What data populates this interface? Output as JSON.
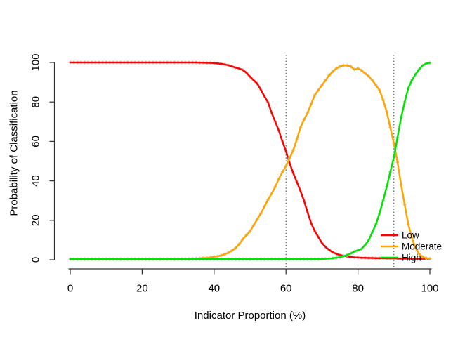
{
  "figure": {
    "background": "#ffffff"
  },
  "chart_data": {
    "type": "line",
    "title": "",
    "xlabel": "Indicator Proportion (%)",
    "ylabel": "Probability of Classification",
    "xlim": [
      0,
      100
    ],
    "ylim": [
      0,
      100
    ],
    "x_ticks": [
      0,
      20,
      40,
      60,
      80,
      100
    ],
    "y_ticks": [
      0,
      20,
      40,
      60,
      80,
      100
    ],
    "grid": false,
    "marker": {
      "shape": "open-diamond",
      "color": "#cccccc"
    },
    "reference_lines": {
      "vertical": [
        60,
        90
      ],
      "style": "dotted",
      "color": "#3c3c3c"
    },
    "legend": {
      "position": "bottom-right",
      "entries": [
        "Low",
        "Moderate",
        "High"
      ]
    },
    "axis_color": "#2e2e2e",
    "x": [
      0,
      1,
      2,
      3,
      4,
      5,
      6,
      7,
      8,
      9,
      10,
      11,
      12,
      13,
      14,
      15,
      16,
      17,
      18,
      19,
      20,
      21,
      22,
      23,
      24,
      25,
      26,
      27,
      28,
      29,
      30,
      31,
      32,
      33,
      34,
      35,
      36,
      37,
      38,
      39,
      40,
      41,
      42,
      43,
      44,
      45,
      46,
      47,
      48,
      49,
      50,
      51,
      52,
      53,
      54,
      55,
      56,
      57,
      58,
      59,
      60,
      61,
      62,
      63,
      64,
      65,
      66,
      67,
      68,
      69,
      70,
      71,
      72,
      73,
      74,
      75,
      76,
      77,
      78,
      79,
      80,
      81,
      82,
      83,
      84,
      85,
      86,
      87,
      88,
      89,
      90,
      91,
      92,
      93,
      94,
      95,
      96,
      97,
      98,
      99,
      100
    ],
    "series": [
      {
        "name": "Low",
        "color": "#ff0000",
        "values": [
          100,
          100,
          100,
          100,
          100,
          100,
          100,
          100,
          100,
          100,
          100,
          100,
          100,
          100,
          100,
          100,
          100,
          100,
          100,
          100,
          100,
          100,
          100,
          100,
          100,
          100,
          100,
          100,
          100,
          100,
          100,
          100,
          100,
          100,
          100,
          100,
          99.9,
          99.9,
          99.8,
          99.8,
          99.7,
          99.5,
          99.3,
          99,
          98.6,
          98,
          97.4,
          96.9,
          96.2,
          94.8,
          92.8,
          91,
          89.3,
          86.2,
          82.8,
          79.8,
          74.5,
          70,
          65.5,
          60,
          55,
          49,
          44,
          39.5,
          35,
          30,
          24,
          18.5,
          14.5,
          11.5,
          8.5,
          6.5,
          5,
          3.8,
          3,
          2.4,
          2,
          1.7,
          1.4,
          1.2,
          1.1,
          1,
          1,
          0.9,
          0.9,
          0.8,
          0.8,
          0.8,
          0.7,
          0.7,
          0.7,
          0.6,
          0.6,
          0.6,
          0.6,
          0.5,
          0.5,
          0.5,
          0.5,
          0.5,
          0.5
        ]
      },
      {
        "name": "Moderate",
        "color": "#ffa500",
        "values": [
          0.3,
          0.3,
          0.3,
          0.3,
          0.3,
          0.3,
          0.3,
          0.3,
          0.3,
          0.3,
          0.3,
          0.3,
          0.3,
          0.3,
          0.3,
          0.3,
          0.3,
          0.3,
          0.3,
          0.3,
          0.3,
          0.3,
          0.3,
          0.3,
          0.3,
          0.3,
          0.3,
          0.3,
          0.3,
          0.3,
          0.3,
          0.4,
          0.4,
          0.5,
          0.5,
          0.6,
          0.7,
          0.9,
          1,
          1.2,
          1.5,
          1.8,
          2.2,
          2.9,
          3.6,
          4.7,
          6,
          8,
          10.5,
          12.5,
          14.5,
          17.5,
          20.5,
          23.5,
          27,
          30.5,
          33.5,
          37,
          41,
          44.5,
          47.5,
          51.5,
          55.5,
          61,
          67,
          71,
          74.5,
          79,
          83.5,
          86,
          88.5,
          91,
          93.5,
          95.5,
          97,
          98,
          98.5,
          98.5,
          98,
          96.5,
          97,
          96,
          94.5,
          93,
          91,
          88.5,
          86,
          81,
          75,
          67,
          59,
          49.5,
          38,
          28,
          18,
          11,
          6,
          3,
          1.5,
          0.8,
          0.5
        ]
      },
      {
        "name": "High",
        "color": "#00e500",
        "values": [
          0.3,
          0.3,
          0.3,
          0.3,
          0.3,
          0.3,
          0.3,
          0.3,
          0.3,
          0.3,
          0.3,
          0.3,
          0.3,
          0.3,
          0.3,
          0.3,
          0.3,
          0.3,
          0.3,
          0.3,
          0.3,
          0.3,
          0.3,
          0.3,
          0.3,
          0.3,
          0.3,
          0.3,
          0.3,
          0.3,
          0.3,
          0.3,
          0.3,
          0.3,
          0.3,
          0.3,
          0.3,
          0.3,
          0.3,
          0.3,
          0.3,
          0.3,
          0.3,
          0.3,
          0.3,
          0.3,
          0.3,
          0.3,
          0.3,
          0.3,
          0.3,
          0.3,
          0.3,
          0.3,
          0.3,
          0.3,
          0.3,
          0.3,
          0.3,
          0.3,
          0.3,
          0.3,
          0.3,
          0.3,
          0.3,
          0.3,
          0.3,
          0.3,
          0.3,
          0.3,
          0.4,
          0.5,
          0.6,
          0.8,
          1,
          1.3,
          1.8,
          2.4,
          3.2,
          4.2,
          4.8,
          5.5,
          7.5,
          10,
          14,
          18,
          23.5,
          30,
          37,
          44.5,
          52,
          62,
          72,
          80,
          87,
          91,
          94,
          96.5,
          98.5,
          99.5,
          99.8
        ]
      }
    ]
  }
}
